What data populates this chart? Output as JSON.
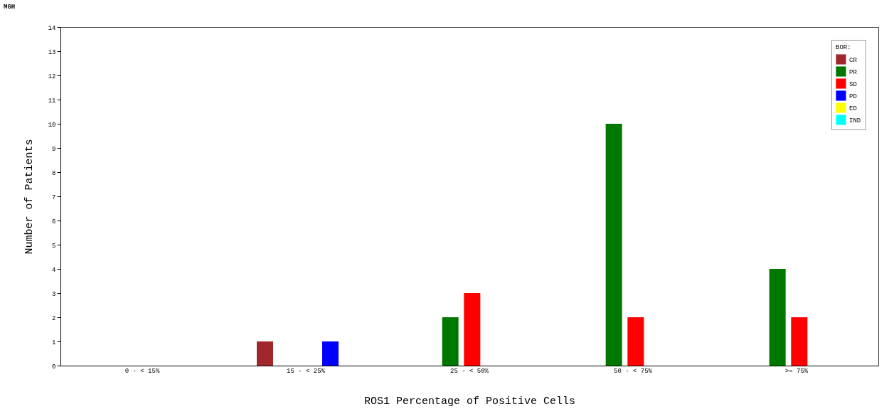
{
  "chart_data": {
    "type": "bar",
    "title": "MGH",
    "xlabel": "ROS1 Percentage of Positive Cells",
    "ylabel": "Number of Patients",
    "legend_title": "BOR:",
    "categories": [
      "0 - < 15%",
      "15 - < 25%",
      "25 - < 50%",
      "50 - < 75%",
      ">= 75%"
    ],
    "series": [
      {
        "name": "CR",
        "color": "#a0282c",
        "values": [
          0,
          1,
          0,
          0,
          0
        ]
      },
      {
        "name": "PR",
        "color": "#007800",
        "values": [
          0,
          0,
          2,
          10,
          4
        ]
      },
      {
        "name": "SD",
        "color": "#ff0000",
        "values": [
          0,
          0,
          3,
          2,
          2
        ]
      },
      {
        "name": "PD",
        "color": "#0000ff",
        "values": [
          0,
          1,
          0,
          0,
          0
        ]
      },
      {
        "name": "ED",
        "color": "#ffff00",
        "values": [
          0,
          0,
          0,
          0,
          0
        ]
      },
      {
        "name": "IND",
        "color": "#00ffff",
        "values": [
          0,
          0,
          0,
          0,
          0
        ]
      }
    ],
    "ylim": [
      0,
      14
    ],
    "yticks": [
      0,
      1,
      2,
      3,
      4,
      5,
      6,
      7,
      8,
      9,
      10,
      11,
      12,
      13,
      14
    ],
    "grid": false,
    "legend": "top right"
  }
}
